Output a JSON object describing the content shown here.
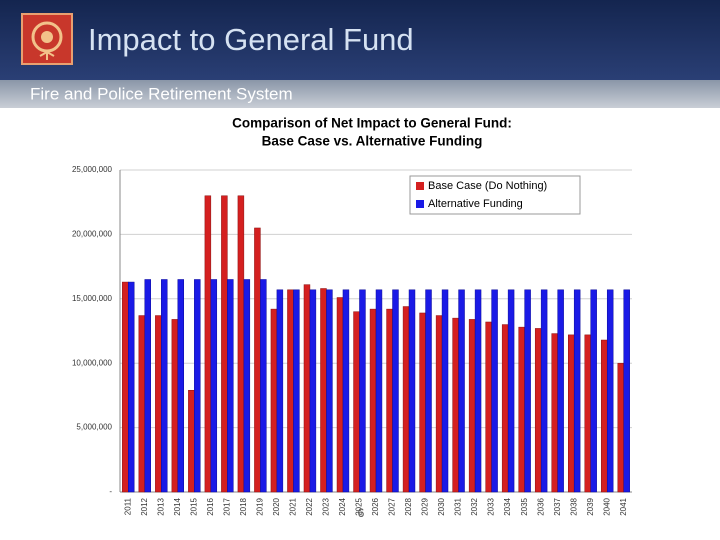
{
  "slide": {
    "title": "Impact to General Fund",
    "subtitle": "Fire and Police Retirement System",
    "page_number": "6"
  },
  "chart_data": {
    "type": "bar",
    "title": "Comparison of Net Impact to General Fund:",
    "subtitle": "Base Case vs. Alternative Funding",
    "categories": [
      "2011",
      "2012",
      "2013",
      "2014",
      "2015",
      "2016",
      "2017",
      "2018",
      "2019",
      "2020",
      "2021",
      "2022",
      "2023",
      "2024",
      "2025",
      "2026",
      "2027",
      "2028",
      "2029",
      "2030",
      "2031",
      "2032",
      "2033",
      "2034",
      "2035",
      "2036",
      "2037",
      "2038",
      "2039",
      "2040",
      "2041"
    ],
    "series": [
      {
        "name": "Base Case (Do Nothing)",
        "color": "#d42020",
        "values": [
          16300000,
          13700000,
          13700000,
          13400000,
          7900000,
          23000000,
          23000000,
          23000000,
          20500000,
          14200000,
          15700000,
          16100000,
          15800000,
          15100000,
          14000000,
          14200000,
          14200000,
          14400000,
          13900000,
          13700000,
          13500000,
          13400000,
          13200000,
          13000000,
          12800000,
          12700000,
          12300000,
          12200000,
          12200000,
          11800000,
          10000000
        ]
      },
      {
        "name": "Alternative Funding",
        "color": "#1a1ae6",
        "values": [
          16300000,
          16500000,
          16500000,
          16500000,
          16500000,
          16500000,
          16500000,
          16500000,
          16500000,
          15700000,
          15700000,
          15700000,
          15700000,
          15700000,
          15700000,
          15700000,
          15700000,
          15700000,
          15700000,
          15700000,
          15700000,
          15700000,
          15700000,
          15700000,
          15700000,
          15700000,
          15700000,
          15700000,
          15700000,
          15700000,
          15700000
        ]
      }
    ],
    "ylim": [
      0,
      25000000
    ],
    "yticks": [
      {
        "value": 0,
        "label": "-"
      },
      {
        "value": 5000000,
        "label": "5,000,000"
      },
      {
        "value": 10000000,
        "label": "10,000,000"
      },
      {
        "value": 15000000,
        "label": "15,000,000"
      },
      {
        "value": 20000000,
        "label": "20,000,000"
      },
      {
        "value": 25000000,
        "label": "25,000,000"
      }
    ],
    "grid": true,
    "legend": "top-right"
  }
}
